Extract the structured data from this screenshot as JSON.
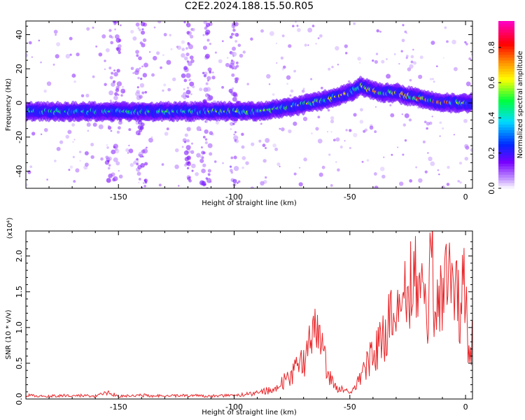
{
  "title": "C2E2.2024.188.15.50.R05",
  "colors": {
    "snr_line": "#e8262a",
    "frame": "#000000"
  },
  "chart_data": [
    {
      "type": "heatmap",
      "xlabel": "Height of straight line (km)",
      "ylabel": "Frequency (Hz)",
      "xlim": [
        -190,
        3
      ],
      "ylim": [
        -50,
        48
      ],
      "xticks": [
        -150,
        -100,
        -50,
        0
      ],
      "xtick_labels": [
        "-150",
        "-100",
        "-50",
        "0"
      ],
      "yticks": [
        -40,
        -20,
        0,
        20,
        40
      ],
      "ytick_labels": [
        "-40",
        "-20",
        "0",
        "20",
        "40"
      ],
      "colorbar": {
        "label": "Normalized spectral amplitude",
        "range": [
          0,
          0.95
        ],
        "ticks": [
          0,
          0.2,
          0.4,
          0.6,
          0.8
        ],
        "tick_labels": [
          "0.0",
          "0.2",
          "0.4",
          "0.6",
          "0.8"
        ],
        "colormap": "rainbow (white-violet-blue-cyan-green-yellow-orange-red-magenta)"
      },
      "ridge": {
        "description": "dominant frequency ridge vs height",
        "x": [
          -190,
          -160,
          -130,
          -110,
          -90,
          -80,
          -70,
          -60,
          -50,
          -45,
          -40,
          -35,
          -30,
          -25,
          -20,
          -15,
          -10,
          -5,
          0,
          3
        ],
        "y": [
          -5,
          -5,
          -5,
          -5,
          -5,
          -3,
          -1,
          2,
          6,
          10,
          7,
          6,
          6,
          4,
          3,
          1,
          0,
          0,
          0,
          0
        ],
        "peak_amplitude": [
          0.45,
          0.45,
          0.5,
          0.55,
          0.55,
          0.5,
          0.6,
          0.6,
          0.6,
          0.55,
          0.7,
          0.65,
          0.65,
          0.75,
          0.8,
          0.8,
          0.85,
          0.6,
          0.55,
          0.5
        ]
      }
    },
    {
      "type": "line",
      "xlabel": "Height of straight line (km)",
      "ylabel": "SNR (10 * v/v)",
      "scale_label": "(x10⁴)",
      "xlim": [
        -190,
        3
      ],
      "ylim": [
        0,
        2.35
      ],
      "xticks": [
        -150,
        -100,
        -50,
        0
      ],
      "xtick_labels": [
        "-150",
        "-100",
        "-50",
        "0"
      ],
      "yticks": [
        0,
        0.5,
        1.0,
        1.5,
        2.0
      ],
      "ytick_labels": [
        "0.0",
        "0.5",
        "1.0",
        "1.5",
        "2.0"
      ],
      "series": [
        {
          "x": [
            -190,
            -180,
            -170,
            -160,
            -155,
            -150,
            -140,
            -130,
            -120,
            -110,
            -100,
            -90,
            -85,
            -80,
            -75,
            -72,
            -70,
            -68,
            -66,
            -64,
            -62,
            -60,
            -58,
            -55,
            -52,
            -50,
            -47,
            -44,
            -42,
            -40,
            -38,
            -36,
            -34,
            -32,
            -30,
            -28,
            -26,
            -24,
            -22,
            -20,
            -18,
            -16,
            -15,
            -14,
            -12,
            -10,
            -8,
            -6,
            -4,
            -2,
            0,
            1,
            3
          ],
          "y": [
            0.05,
            0.04,
            0.05,
            0.04,
            0.1,
            0.04,
            0.05,
            0.04,
            0.05,
            0.04,
            0.05,
            0.08,
            0.12,
            0.2,
            0.35,
            0.45,
            0.5,
            0.7,
            0.85,
            0.9,
            0.7,
            0.45,
            0.25,
            0.15,
            0.12,
            0.1,
            0.2,
            0.4,
            0.55,
            0.65,
            0.7,
            0.8,
            1.0,
            1.1,
            1.25,
            1.2,
            1.35,
            1.5,
            1.7,
            1.85,
            1.4,
            1.0,
            2.35,
            1.6,
            1.4,
            1.3,
            1.6,
            1.5,
            1.4,
            1.3,
            1.6,
            0.45,
            0.8
          ]
        }
      ]
    }
  ]
}
